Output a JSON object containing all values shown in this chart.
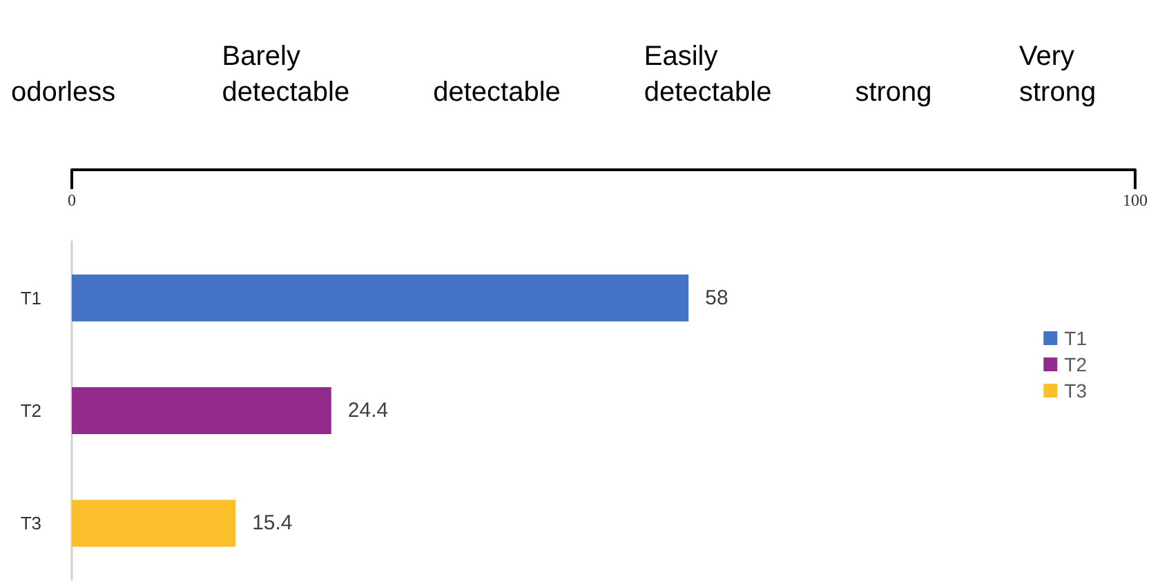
{
  "chart_data": {
    "type": "bar",
    "orientation": "horizontal",
    "categories": [
      "T1",
      "T2",
      "T3"
    ],
    "series": [
      {
        "name": "T1",
        "color": "#4472c4",
        "values": [
          58,
          null,
          null
        ]
      },
      {
        "name": "T2",
        "color": "#922b8c",
        "values": [
          null,
          24.4,
          null
        ]
      },
      {
        "name": "T3",
        "color": "#fbbf2c",
        "values": [
          null,
          null,
          15.4
        ]
      }
    ],
    "xlim": [
      0,
      100
    ],
    "xticks": [
      0,
      100
    ],
    "data_labels": true,
    "legend": "right",
    "grid": false,
    "annotations": [
      "odorless",
      "Barely detectable",
      "detectable",
      "Easily detectable",
      "strong",
      "Very strong"
    ]
  }
}
